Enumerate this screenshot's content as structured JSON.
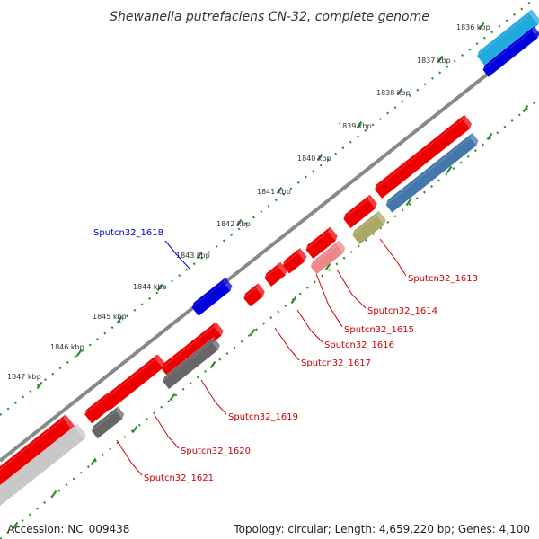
{
  "title": "Shewanella putrefaciens CN-32, complete genome",
  "accession": "Accession: NC_009438",
  "topology": "Topology: circular; Length: 4,659,220 bp; Genes: 4,100",
  "colors": {
    "backbone": "#888888",
    "tick_green": "#2e8b2e",
    "label_red": "#cc0000",
    "label_blue": "#0000cc",
    "cds_red": "#ee0000",
    "cds_pink": "#ee8888",
    "cds_blue": "#0000dd",
    "cds_lightblue": "#22aadd",
    "cds_steelblue": "#4477aa",
    "cds_olive": "#aaa866",
    "cds_gray": "#666666",
    "cds_lightgray": "#c8c8c8"
  },
  "kbp_labels": [
    "1836 kbp",
    "1837 kbp",
    "1838 kbp",
    "1839 kbp",
    "1840 kbp",
    "1841 kbp",
    "1842 kbp",
    "1843 kbp",
    "1844 kbp",
    "1845 kbp",
    "1846 kbp",
    "1847 kbp"
  ],
  "gene_labels": [
    {
      "text": "Sputcn32_1613",
      "color": "red"
    },
    {
      "text": "Sputcn32_1614",
      "color": "red"
    },
    {
      "text": "Sputcn32_1615",
      "color": "red"
    },
    {
      "text": "Sputcn32_1616",
      "color": "red"
    },
    {
      "text": "Sputcn32_1617",
      "color": "red"
    },
    {
      "text": "Sputcn32_1618",
      "color": "blue"
    },
    {
      "text": "Sputcn32_1619",
      "color": "red"
    },
    {
      "text": "Sputcn32_1620",
      "color": "red"
    },
    {
      "text": "Sputcn32_1621",
      "color": "red"
    }
  ]
}
